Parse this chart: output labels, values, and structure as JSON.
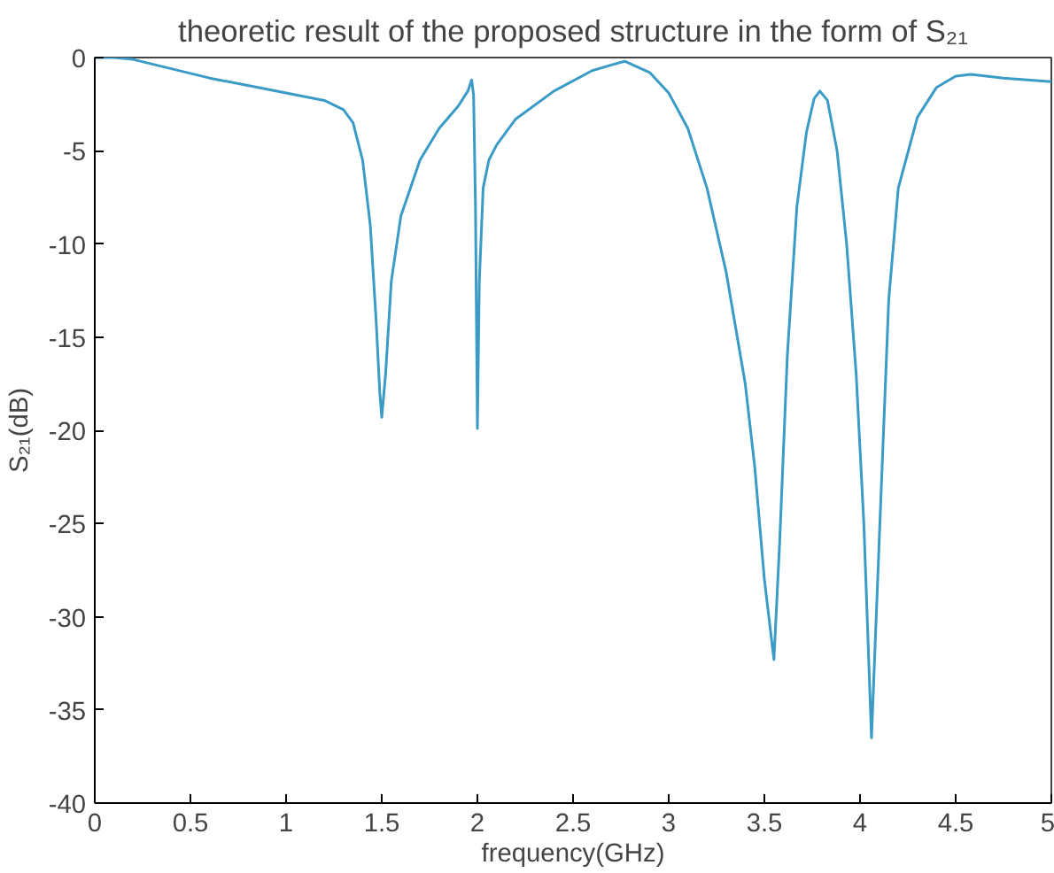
{
  "chart_data": {
    "type": "line",
    "title": "theoretic result of the proposed structure in the form of S₂₁",
    "xlabel": "frequency(GHz)",
    "ylabel": "S₂₁(dB)",
    "x": [
      0,
      0.1,
      0.2,
      0.4,
      0.6,
      0.8,
      1.0,
      1.2,
      1.3,
      1.35,
      1.4,
      1.44,
      1.47,
      1.49,
      1.5,
      1.52,
      1.55,
      1.6,
      1.7,
      1.8,
      1.9,
      1.95,
      1.97,
      1.98,
      1.99,
      2.0,
      2.01,
      2.03,
      2.06,
      2.1,
      2.2,
      2.4,
      2.6,
      2.7,
      2.77,
      2.9,
      3.0,
      3.1,
      3.2,
      3.3,
      3.4,
      3.45,
      3.5,
      3.55,
      3.58,
      3.62,
      3.67,
      3.72,
      3.76,
      3.79,
      3.83,
      3.88,
      3.93,
      3.98,
      4.02,
      4.06,
      4.1,
      4.15,
      4.2,
      4.3,
      4.4,
      4.5,
      4.58,
      4.75,
      5.0
    ],
    "series": [
      {
        "color": "#3a9bc6",
        "values": [
          0,
          0,
          -0.1,
          -0.6,
          -1.1,
          -1.5,
          -1.9,
          -2.3,
          -2.8,
          -3.5,
          -5.5,
          -9,
          -14,
          -18,
          -19.3,
          -17,
          -12,
          -8.5,
          -5.5,
          -3.8,
          -2.6,
          -1.8,
          -1.2,
          -2,
          -8,
          -19.9,
          -12,
          -7,
          -5.5,
          -4.7,
          -3.3,
          -1.8,
          -0.7,
          -0.4,
          -0.2,
          -0.8,
          -1.9,
          -3.8,
          -7,
          -11.5,
          -17.5,
          -22,
          -28,
          -32.3,
          -26,
          -16,
          -8,
          -4,
          -2.2,
          -1.8,
          -2.3,
          -5,
          -10,
          -17,
          -25,
          -36.5,
          -26,
          -13,
          -7,
          -3.2,
          -1.6,
          -1.0,
          -0.9,
          -1.1,
          -1.3
        ]
      }
    ],
    "xlim": [
      0,
      5
    ],
    "ylim": [
      -40,
      0
    ],
    "xticks": [
      0,
      0.5,
      1,
      1.5,
      2,
      2.5,
      3,
      3.5,
      4,
      4.5,
      5
    ],
    "yticks": [
      -40,
      -35,
      -30,
      -25,
      -20,
      -15,
      -10,
      -5,
      0
    ],
    "marker": "none",
    "line_style": "solid"
  }
}
